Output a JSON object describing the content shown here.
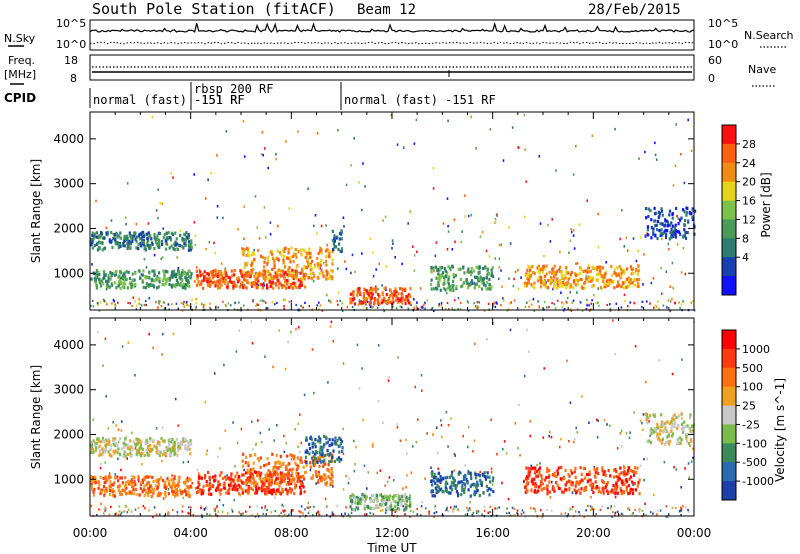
{
  "header": {
    "station": "South Pole Station (fitACF)",
    "beam": "Beam 12",
    "date": "28/Feb/2015"
  },
  "nsky_panel": {
    "left_label": "N.Sky",
    "right_label": "N.Search",
    "y_ticks": [
      "10^5",
      "10^0"
    ]
  },
  "freq_panel": {
    "left_label_1": "Freq.",
    "left_label_2": "[MHz]",
    "right_label": "Nave",
    "left_ticks": [
      "18",
      "8"
    ],
    "right_ticks": [
      "60",
      "0"
    ]
  },
  "cpid_panel": {
    "label": "CPID",
    "segments": [
      "normal (fast) -151 RF",
      "rbsp 200 RF",
      "-151 RF",
      "normal (fast) -151 RF"
    ]
  },
  "x_axis": {
    "label": "Time UT",
    "ticks": [
      "00:00",
      "04:00",
      "08:00",
      "12:00",
      "16:00",
      "20:00",
      "00:00"
    ]
  },
  "power_panel": {
    "ylabel": "Slant Range [km]",
    "y_ticks": [
      "4000",
      "3000",
      "2000",
      "1000"
    ],
    "colorbar_label": "Power [dB]",
    "colorbar_ticks": [
      "28",
      "24",
      "20",
      "16",
      "12",
      "8",
      "4"
    ],
    "colors": [
      "#1010ff",
      "#1a3fae",
      "#2c7d6e",
      "#4a9a5a",
      "#7bc24a",
      "#e6d41a",
      "#f08c14",
      "#ff6010",
      "#ff1010"
    ]
  },
  "velocity_panel": {
    "ylabel": "Slant Range [km]",
    "y_ticks": [
      "4000",
      "3000",
      "2000",
      "1000"
    ],
    "colorbar_label": "Velocity [m s^-1]",
    "colorbar_ticks": [
      "1000",
      "500",
      "100",
      "25",
      "-25",
      "-100",
      "-500",
      "-1000"
    ],
    "colors": [
      "#1c3fa8",
      "#2a6ab0",
      "#3b8a5a",
      "#7cbc4a",
      "#c8c8c8",
      "#f0a020",
      "#ff7010",
      "#ff3a10",
      "#ff0000"
    ]
  },
  "chart_data": {
    "type": "heatmap",
    "x_range_hours": [
      0,
      24
    ],
    "y_range_km": [
      180,
      4600
    ],
    "power_regions": [
      {
        "t": [
          0,
          4
        ],
        "r": [
          1550,
          1950
        ],
        "level": 2
      },
      {
        "t": [
          0,
          4
        ],
        "r": [
          700,
          1100
        ],
        "level": 3
      },
      {
        "t": [
          4.2,
          8.5
        ],
        "r": [
          700,
          1100
        ],
        "level": 7
      },
      {
        "t": [
          6.0,
          9.6
        ],
        "r": [
          900,
          1600
        ],
        "level": 6
      },
      {
        "t": [
          9.6,
          10.0
        ],
        "r": [
          1500,
          2000
        ],
        "level": 2
      },
      {
        "t": [
          10.3,
          12.7
        ],
        "r": [
          350,
          700
        ],
        "level": 7
      },
      {
        "t": [
          13.5,
          16.0
        ],
        "r": [
          650,
          1200
        ],
        "level": 3
      },
      {
        "t": [
          17.2,
          21.8
        ],
        "r": [
          700,
          1200
        ],
        "level": 6
      },
      {
        "t": [
          22.0,
          24
        ],
        "r": [
          1800,
          2500
        ],
        "level": 1
      }
    ],
    "velocity_regions": [
      {
        "t": [
          0,
          4
        ],
        "r": [
          1550,
          1950
        ],
        "level": 4
      },
      {
        "t": [
          0,
          4
        ],
        "r": [
          650,
          1100
        ],
        "level": 6
      },
      {
        "t": [
          4.2,
          8.5
        ],
        "r": [
          700,
          1200
        ],
        "level": 7
      },
      {
        "t": [
          6.0,
          9.6
        ],
        "r": [
          900,
          1600
        ],
        "level": 6
      },
      {
        "t": [
          8.5,
          10.0
        ],
        "r": [
          1400,
          2000
        ],
        "level": 1
      },
      {
        "t": [
          10.3,
          12.7
        ],
        "r": [
          350,
          700
        ],
        "level": 3
      },
      {
        "t": [
          13.5,
          16.0
        ],
        "r": [
          650,
          1200
        ],
        "level": 1
      },
      {
        "t": [
          17.2,
          21.8
        ],
        "r": [
          700,
          1300
        ],
        "level": 7
      },
      {
        "t": [
          22.0,
          24
        ],
        "r": [
          1800,
          2500
        ],
        "level": 4
      }
    ]
  }
}
